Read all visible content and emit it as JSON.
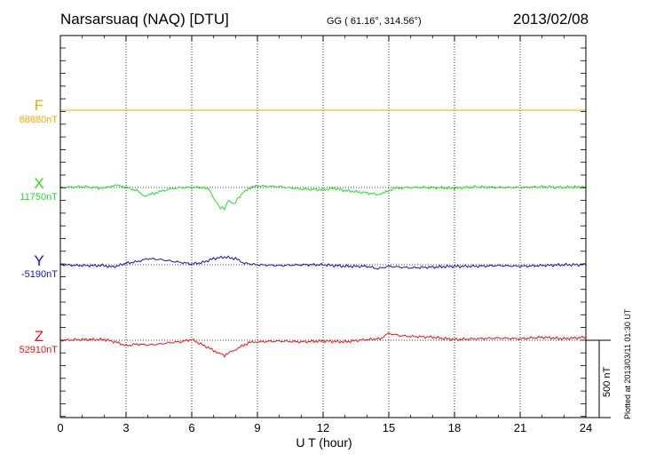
{
  "header": {
    "station": "Narsarsuaq (NAQ)  [DTU]",
    "coords": "GG ( 61.16°, 314.56°)",
    "date": "2013/02/08"
  },
  "footer": {
    "plotted": "Plotted at 2013/03/11 01:30 UT"
  },
  "scale_label": "500 nT",
  "chart_data": {
    "type": "line",
    "xlabel": "U T (hour)",
    "xlim": [
      0,
      24
    ],
    "xticks": [
      "0",
      "3",
      "6",
      "9",
      "12",
      "15",
      "18",
      "21",
      "24"
    ],
    "grid": true,
    "series": [
      {
        "name": "F",
        "baseline": "88880nT",
        "color": "#f2a900",
        "values_nT": [
          [
            0,
            0
          ],
          [
            24,
            0
          ]
        ]
      },
      {
        "name": "X",
        "baseline": "11750nT",
        "color": "#22dd22",
        "values_nT": [
          [
            0,
            0
          ],
          [
            1,
            5
          ],
          [
            2,
            -5
          ],
          [
            2.3,
            10
          ],
          [
            2.7,
            15
          ],
          [
            3,
            0
          ],
          [
            3.5,
            -20
          ],
          [
            3.9,
            -60
          ],
          [
            4.2,
            -40
          ],
          [
            4.6,
            -25
          ],
          [
            5,
            -10
          ],
          [
            5.5,
            0
          ],
          [
            6,
            0
          ],
          [
            6.5,
            0
          ],
          [
            6.8,
            -15
          ],
          [
            7.1,
            -90
          ],
          [
            7.3,
            -130
          ],
          [
            7.5,
            -135
          ],
          [
            7.7,
            -80
          ],
          [
            7.9,
            -110
          ],
          [
            8.1,
            -75
          ],
          [
            8.3,
            -40
          ],
          [
            8.6,
            -5
          ],
          [
            9,
            10
          ],
          [
            10,
            5
          ],
          [
            11,
            -10
          ],
          [
            12,
            -15
          ],
          [
            12.5,
            -5
          ],
          [
            13,
            -20
          ],
          [
            14,
            -35
          ],
          [
            14.5,
            -45
          ],
          [
            14.8,
            -35
          ],
          [
            15.2,
            -5
          ],
          [
            16,
            0
          ],
          [
            17,
            0
          ],
          [
            18,
            -5
          ],
          [
            19,
            5
          ],
          [
            20,
            0
          ],
          [
            21,
            0
          ],
          [
            22,
            5
          ],
          [
            23,
            0
          ],
          [
            24,
            5
          ]
        ]
      },
      {
        "name": "Y",
        "baseline": "-5190nT",
        "color": "#1111cc",
        "values_nT": [
          [
            0,
            0
          ],
          [
            1,
            -5
          ],
          [
            2,
            -5
          ],
          [
            2.4,
            -15
          ],
          [
            3,
            10
          ],
          [
            3.5,
            20
          ],
          [
            4,
            40
          ],
          [
            4.5,
            35
          ],
          [
            5,
            25
          ],
          [
            5.5,
            15
          ],
          [
            6,
            5
          ],
          [
            6.5,
            15
          ],
          [
            7,
            40
          ],
          [
            7.5,
            50
          ],
          [
            8,
            40
          ],
          [
            8.4,
            10
          ],
          [
            9,
            0
          ],
          [
            10,
            -5
          ],
          [
            11,
            0
          ],
          [
            12,
            0
          ],
          [
            13,
            -10
          ],
          [
            14,
            -10
          ],
          [
            14.5,
            -25
          ],
          [
            15,
            -10
          ],
          [
            16,
            -20
          ],
          [
            17,
            -15
          ],
          [
            18,
            -10
          ],
          [
            19,
            -10
          ],
          [
            20,
            -5
          ],
          [
            21,
            -10
          ],
          [
            22,
            -5
          ],
          [
            23,
            0
          ],
          [
            24,
            0
          ]
        ]
      },
      {
        "name": "Z",
        "baseline": "52910nT",
        "color": "#ee1111",
        "values_nT": [
          [
            0,
            0
          ],
          [
            1,
            5
          ],
          [
            2,
            5
          ],
          [
            2.5,
            -10
          ],
          [
            3,
            -35
          ],
          [
            3.5,
            -25
          ],
          [
            4,
            -30
          ],
          [
            4.5,
            -25
          ],
          [
            5,
            -15
          ],
          [
            5.5,
            -10
          ],
          [
            6,
            5
          ],
          [
            6.5,
            -30
          ],
          [
            7,
            -65
          ],
          [
            7.3,
            -85
          ],
          [
            7.5,
            -100
          ],
          [
            7.8,
            -75
          ],
          [
            8.2,
            -45
          ],
          [
            8.6,
            -15
          ],
          [
            9,
            -10
          ],
          [
            10,
            -5
          ],
          [
            11,
            -10
          ],
          [
            12,
            -5
          ],
          [
            13,
            -10
          ],
          [
            14,
            5
          ],
          [
            14.6,
            10
          ],
          [
            15,
            45
          ],
          [
            15.5,
            30
          ],
          [
            16,
            25
          ],
          [
            17,
            20
          ],
          [
            18,
            5
          ],
          [
            19,
            10
          ],
          [
            20,
            15
          ],
          [
            21,
            10
          ],
          [
            22,
            20
          ],
          [
            23,
            10
          ],
          [
            24,
            20
          ]
        ]
      }
    ]
  }
}
